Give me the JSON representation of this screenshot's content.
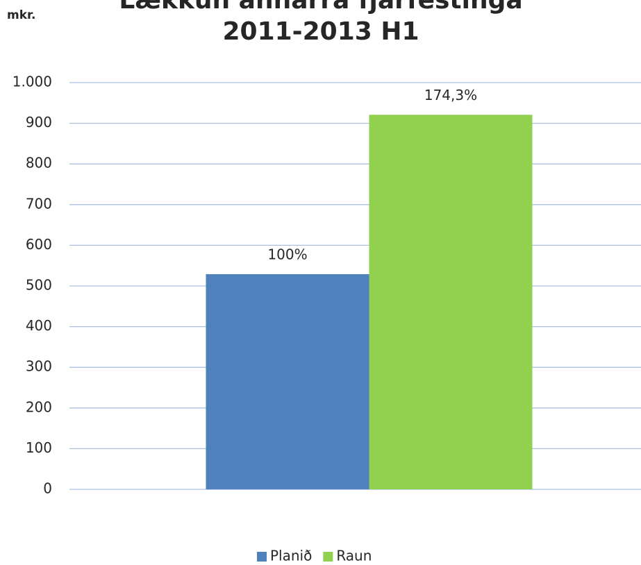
{
  "chart_data": {
    "type": "bar",
    "title": [
      "Lækkun annarra fjárfestinga",
      "2011-2013 H1"
    ],
    "y_label": "mkr.",
    "categories": [
      null
    ],
    "series": [
      {
        "name": "Planið",
        "color": "#4f81bd",
        "values": [
          529
        ]
      },
      {
        "name": "Raun",
        "color": "#92d050",
        "values": [
          921
        ]
      }
    ],
    "annotations": [
      "100%",
      "174,3%"
    ],
    "ylim": [
      0,
      1000
    ],
    "yticks": [
      0,
      100,
      200,
      300,
      400,
      500,
      600,
      700,
      800,
      900,
      {
        "value": 1000,
        "label": "1.000"
      }
    ],
    "grid": true,
    "legend": "bottom"
  }
}
